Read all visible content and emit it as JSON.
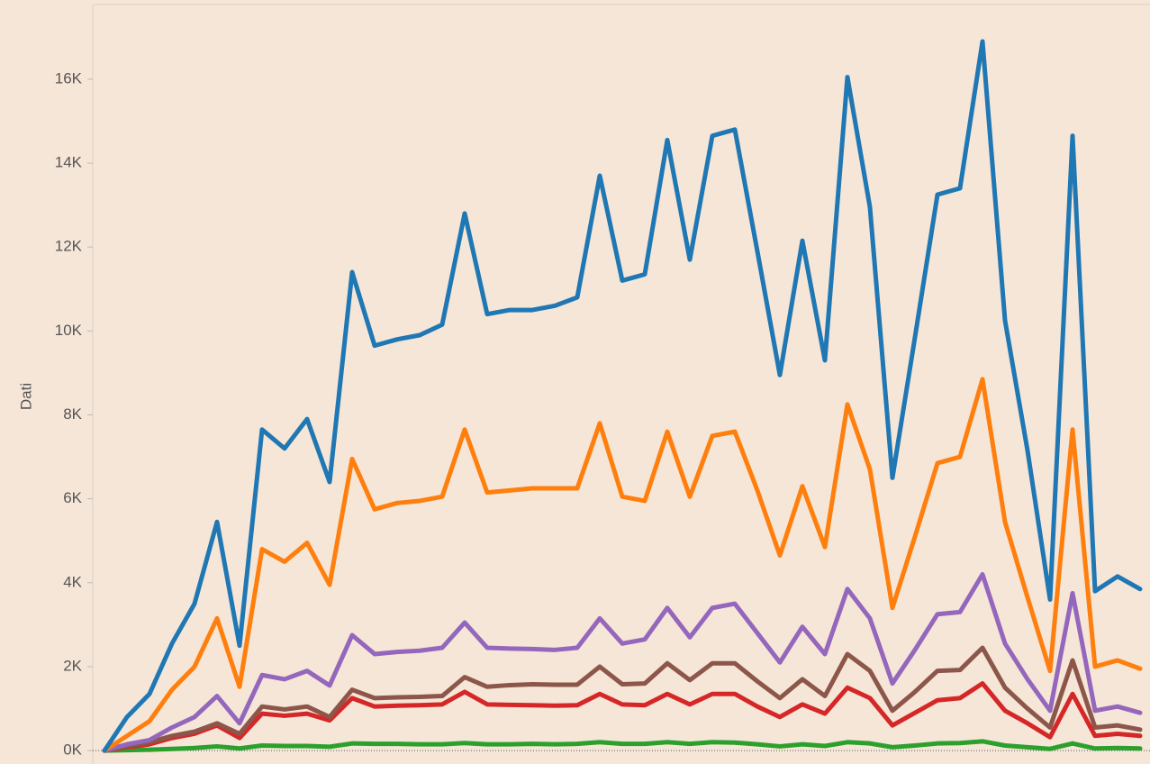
{
  "chart_data": {
    "type": "line",
    "y_label": "Dati",
    "ylim": [
      -320,
      17780
    ],
    "yticks": [
      {
        "value": 0,
        "label": "0K"
      },
      {
        "value": 2000,
        "label": "2K"
      },
      {
        "value": 4000,
        "label": "4K"
      },
      {
        "value": 6000,
        "label": "6K"
      },
      {
        "value": 8000,
        "label": "8K"
      },
      {
        "value": 10000,
        "label": "10K"
      },
      {
        "value": 12000,
        "label": "12K"
      },
      {
        "value": 14000,
        "label": "14K"
      },
      {
        "value": 16000,
        "label": "16K"
      }
    ],
    "series": [
      {
        "color": "#1f77b4",
        "values": [
          0,
          800,
          1350,
          2550,
          3500,
          5450,
          2500,
          7650,
          7200,
          7900,
          6400,
          11400,
          9650,
          9800,
          9900,
          10150,
          12800,
          10400,
          10500,
          10500,
          10600,
          10800,
          13700,
          11200,
          11350,
          14550,
          11700,
          14650,
          14800,
          11900,
          8950,
          12150,
          9300,
          16050,
          12950,
          6500,
          9850,
          13250,
          13400,
          16900,
          10250,
          7150,
          3600,
          14650,
          3800,
          4150,
          3850
        ]
      },
      {
        "color": "#ff7f0e",
        "values": [
          0,
          350,
          700,
          1450,
          2000,
          3150,
          1520,
          4800,
          4500,
          4950,
          3950,
          6950,
          5750,
          5900,
          5950,
          6050,
          7650,
          6150,
          6200,
          6250,
          6250,
          6250,
          7800,
          6050,
          5950,
          7600,
          6050,
          7500,
          7600,
          6200,
          4650,
          6300,
          4850,
          8250,
          6700,
          3400,
          5100,
          6850,
          7000,
          8850,
          5450,
          3650,
          1900,
          7650,
          2000,
          2150,
          1950
        ]
      },
      {
        "color": "#9467bd",
        "values": [
          0,
          150,
          250,
          550,
          800,
          1300,
          650,
          1800,
          1700,
          1900,
          1550,
          2750,
          2300,
          2350,
          2380,
          2450,
          3050,
          2450,
          2430,
          2420,
          2400,
          2450,
          3150,
          2550,
          2650,
          3400,
          2700,
          3400,
          3500,
          2800,
          2100,
          2950,
          2300,
          3850,
          3150,
          1600,
          2400,
          3250,
          3300,
          4200,
          2550,
          1700,
          950,
          3750,
          950,
          1050,
          900
        ]
      },
      {
        "color": "#8c564b",
        "values": [
          0,
          100,
          200,
          350,
          450,
          650,
          400,
          1050,
          980,
          1050,
          800,
          1450,
          1250,
          1270,
          1280,
          1300,
          1750,
          1520,
          1560,
          1580,
          1570,
          1570,
          2000,
          1580,
          1600,
          2080,
          1680,
          2080,
          2080,
          1650,
          1250,
          1700,
          1300,
          2300,
          1900,
          950,
          1400,
          1900,
          1920,
          2450,
          1500,
          1000,
          550,
          2150,
          550,
          600,
          500
        ]
      },
      {
        "color": "#d62728",
        "values": [
          0,
          80,
          150,
          300,
          400,
          600,
          300,
          880,
          830,
          880,
          720,
          1250,
          1050,
          1070,
          1080,
          1100,
          1400,
          1100,
          1090,
          1080,
          1070,
          1080,
          1350,
          1100,
          1080,
          1350,
          1100,
          1350,
          1350,
          1050,
          800,
          1100,
          880,
          1500,
          1250,
          600,
          900,
          1200,
          1250,
          1600,
          950,
          650,
          320,
          1350,
          350,
          400,
          350
        ]
      },
      {
        "color": "#2ca02c",
        "values": [
          0,
          10,
          20,
          40,
          60,
          100,
          50,
          120,
          110,
          110,
          90,
          170,
          160,
          160,
          150,
          150,
          180,
          150,
          150,
          160,
          150,
          160,
          200,
          160,
          160,
          200,
          160,
          200,
          190,
          150,
          100,
          150,
          110,
          200,
          170,
          80,
          120,
          170,
          180,
          220,
          120,
          80,
          40,
          170,
          50,
          60,
          50
        ]
      }
    ]
  }
}
